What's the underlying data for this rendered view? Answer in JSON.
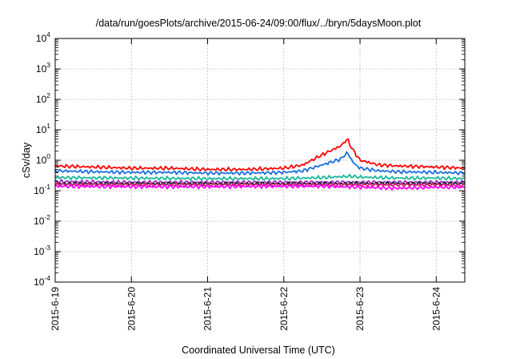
{
  "chart_data": {
    "type": "line",
    "title": "/data/run/goesPlots/archive/2015-06-24/09:00/flux/../bryn/5daysMoon.plot",
    "xlabel": "Coordinated Universal Time (UTC)",
    "ylabel": "cSv/day",
    "yscale": "log",
    "ylim": [
      0.0001,
      10000
    ],
    "xlim": [
      "2015-06-19T00:00",
      "2015-06-24T09:00"
    ],
    "x_ticks": [
      "2015-6-19",
      "2015-6-20",
      "2015-6-21",
      "2015-6-22",
      "2015-6-23",
      "2015-6-24"
    ],
    "y_ticks": [
      {
        "base": "10",
        "exp": "-4"
      },
      {
        "base": "10",
        "exp": "-3"
      },
      {
        "base": "10",
        "exp": "-2"
      },
      {
        "base": "10",
        "exp": "-1"
      },
      {
        "base": "10",
        "exp": "0"
      },
      {
        "base": "10",
        "exp": "1"
      },
      {
        "base": "10",
        "exp": "2"
      },
      {
        "base": "10",
        "exp": "3"
      },
      {
        "base": "10",
        "exp": "4"
      }
    ],
    "grid": true,
    "legend": false,
    "series": [
      {
        "color": "#ff0000",
        "x": [
          "2015-06-19T00:00",
          "2015-06-19T12:00",
          "2015-06-20T00:00",
          "2015-06-20T12:00",
          "2015-06-21T00:00",
          "2015-06-21T12:00",
          "2015-06-22T00:00",
          "2015-06-22T06:00",
          "2015-06-22T12:00",
          "2015-06-22T18:00",
          "2015-06-22T20:00",
          "2015-06-22T21:00",
          "2015-06-22T22:00",
          "2015-06-23T00:00",
          "2015-06-23T06:00",
          "2015-06-23T12:00",
          "2015-06-24T00:00",
          "2015-06-24T09:00"
        ],
        "y": [
          0.65,
          0.6,
          0.55,
          0.55,
          0.5,
          0.5,
          0.55,
          0.7,
          1.5,
          3,
          5,
          3,
          2,
          1,
          0.7,
          0.65,
          0.6,
          0.55
        ]
      },
      {
        "color": "#1a6fe0",
        "x": [
          "2015-06-19T00:00",
          "2015-06-19T12:00",
          "2015-06-20T00:00",
          "2015-06-20T12:00",
          "2015-06-21T00:00",
          "2015-06-21T12:00",
          "2015-06-22T00:00",
          "2015-06-22T06:00",
          "2015-06-22T12:00",
          "2015-06-22T18:00",
          "2015-06-22T20:00",
          "2015-06-22T21:00",
          "2015-06-22T22:00",
          "2015-06-23T00:00",
          "2015-06-23T06:00",
          "2015-06-23T12:00",
          "2015-06-24T00:00",
          "2015-06-24T09:00"
        ],
        "y": [
          0.45,
          0.42,
          0.4,
          0.4,
          0.38,
          0.38,
          0.4,
          0.45,
          0.7,
          1.1,
          1.8,
          1.2,
          0.8,
          0.55,
          0.45,
          0.42,
          0.4,
          0.38
        ]
      },
      {
        "color": "#1ab89a",
        "x": [
          "2015-06-19T00:00",
          "2015-06-20T00:00",
          "2015-06-21T00:00",
          "2015-06-22T00:00",
          "2015-06-22T12:00",
          "2015-06-22T21:00",
          "2015-06-23T00:00",
          "2015-06-23T12:00",
          "2015-06-24T00:00",
          "2015-06-24T09:00"
        ],
        "y": [
          0.27,
          0.26,
          0.25,
          0.25,
          0.27,
          0.3,
          0.28,
          0.26,
          0.26,
          0.25
        ]
      },
      {
        "color": "#9b30c8",
        "x": [
          "2015-06-19T00:00",
          "2015-06-20T00:00",
          "2015-06-21T00:00",
          "2015-06-22T00:00",
          "2015-06-23T00:00",
          "2015-06-24T00:00",
          "2015-06-24T09:00"
        ],
        "y": [
          0.2,
          0.19,
          0.19,
          0.19,
          0.19,
          0.19,
          0.19
        ]
      },
      {
        "color": "#222222",
        "x": [
          "2015-06-19T00:00",
          "2015-06-20T00:00",
          "2015-06-21T00:00",
          "2015-06-22T00:00",
          "2015-06-23T00:00",
          "2015-06-24T00:00",
          "2015-06-24T09:00"
        ],
        "y": [
          0.17,
          0.17,
          0.17,
          0.17,
          0.17,
          0.17,
          0.17
        ]
      },
      {
        "color": "#e0207e",
        "x": [
          "2015-06-19T00:00",
          "2015-06-20T00:00",
          "2015-06-21T00:00",
          "2015-06-22T00:00",
          "2015-06-23T00:00",
          "2015-06-24T00:00",
          "2015-06-24T09:00"
        ],
        "y": [
          0.16,
          0.155,
          0.155,
          0.155,
          0.155,
          0.155,
          0.15
        ]
      },
      {
        "color": "#ff00ff",
        "x": [
          "2015-06-19T00:00",
          "2015-06-20T00:00",
          "2015-06-21T00:00",
          "2015-06-22T00:00",
          "2015-06-22T12:00",
          "2015-06-23T00:00",
          "2015-06-23T12:00",
          "2015-06-24T00:00",
          "2015-06-24T09:00"
        ],
        "y": [
          0.14,
          0.135,
          0.135,
          0.14,
          0.14,
          0.13,
          0.12,
          0.13,
          0.13
        ]
      }
    ]
  }
}
